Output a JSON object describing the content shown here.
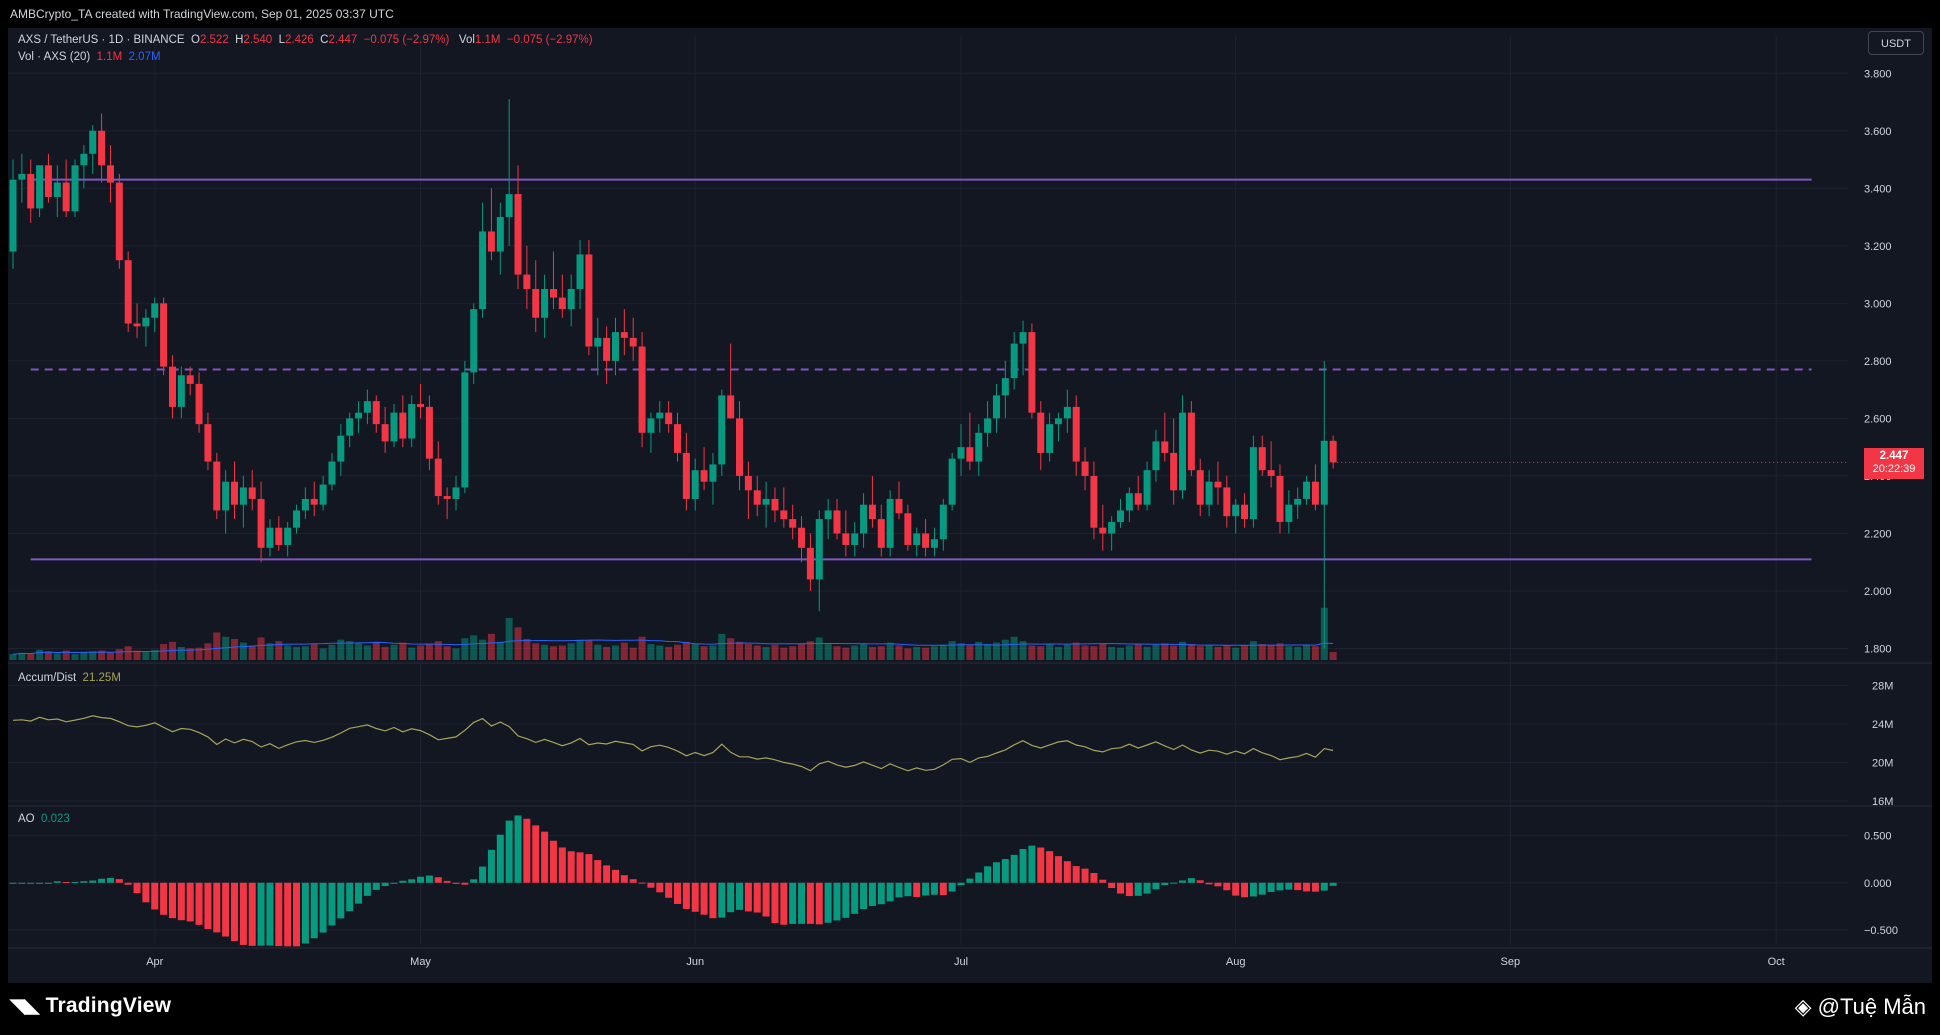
{
  "header": {
    "caption": "AMBCrypto_TA created with TradingView.com, Sep 01, 2025 03:37 UTC"
  },
  "legend": {
    "symbol": "AXS / TetherUS · 1D · BINANCE",
    "o_label": "O",
    "o": "2.522",
    "h_label": "H",
    "h": "2.540",
    "l_label": "L",
    "l": "2.426",
    "c_label": "C",
    "c": "2.447",
    "change": "−0.075 (−2.97%)",
    "vol_label": "Vol",
    "vol": "1.1M",
    "vol_change": "−0.075 (−2.97%)",
    "vol_ind": "Vol · AXS (20)",
    "vol_val": "1.1M",
    "vol_ma": "2.07M",
    "ad_name": "Accum/Dist",
    "ad_val": "21.25M",
    "ao_name": "AO",
    "ao_val": "0.023"
  },
  "currency": "USDT",
  "last_price": {
    "price": "2.447",
    "countdown": "20:22:39"
  },
  "branding": {
    "logo": "TradingView",
    "credit": "@Tuệ Mẫn"
  },
  "colors": {
    "bg": "#131722",
    "up": "#089981",
    "down": "#f23645",
    "level": "#7e57c2",
    "ad_line": "#a8a35a",
    "vol_ma": "#2962ff",
    "grid": "#1e2230",
    "axis_text": "#d1d4dc"
  },
  "chart_data": {
    "type": "candlestick",
    "x_axis": {
      "ticks": [
        "Apr",
        "May",
        "Jun",
        "Jul",
        "Aug",
        "Sep",
        "Oct"
      ],
      "tick_dates": [
        "2025-04-01",
        "2025-05-01",
        "2025-06-01",
        "2025-07-01",
        "2025-08-01",
        "2025-09-01",
        "2025-10-01"
      ]
    },
    "price_axis": {
      "ticks": [
        "3.800",
        "3.600",
        "3.400",
        "3.200",
        "3.000",
        "2.800",
        "2.600",
        "2.400",
        "2.200",
        "2.000",
        "1.800"
      ],
      "range": [
        1.76,
        3.86
      ]
    },
    "levels": [
      {
        "price": 3.43,
        "style": "solid",
        "from": "2025-03-18",
        "to": "2025-10-05"
      },
      {
        "price": 2.77,
        "style": "dashed",
        "from": "2025-03-18",
        "to": "2025-10-05"
      },
      {
        "price": 2.11,
        "style": "solid",
        "from": "2025-03-18",
        "to": "2025-10-05"
      }
    ],
    "candles_start": "2025-03-16",
    "candles": [
      [
        3.18,
        3.5,
        3.12,
        3.43
      ],
      [
        3.43,
        3.52,
        3.35,
        3.45
      ],
      [
        3.45,
        3.5,
        3.28,
        3.33
      ],
      [
        3.33,
        3.48,
        3.3,
        3.48
      ],
      [
        3.48,
        3.52,
        3.35,
        3.37
      ],
      [
        3.37,
        3.48,
        3.3,
        3.42
      ],
      [
        3.42,
        3.5,
        3.3,
        3.32
      ],
      [
        3.32,
        3.5,
        3.3,
        3.48
      ],
      [
        3.48,
        3.55,
        3.4,
        3.52
      ],
      [
        3.52,
        3.62,
        3.45,
        3.6
      ],
      [
        3.6,
        3.66,
        3.42,
        3.48
      ],
      [
        3.48,
        3.55,
        3.35,
        3.42
      ],
      [
        3.42,
        3.45,
        3.12,
        3.15
      ],
      [
        3.15,
        3.18,
        2.9,
        2.93
      ],
      [
        2.93,
        3.0,
        2.88,
        2.92
      ],
      [
        2.92,
        2.98,
        2.85,
        2.95
      ],
      [
        2.95,
        3.02,
        2.9,
        3.0
      ],
      [
        3.0,
        3.02,
        2.75,
        2.78
      ],
      [
        2.78,
        2.82,
        2.6,
        2.64
      ],
      [
        2.64,
        2.78,
        2.6,
        2.75
      ],
      [
        2.75,
        2.78,
        2.68,
        2.72
      ],
      [
        2.72,
        2.76,
        2.55,
        2.58
      ],
      [
        2.58,
        2.62,
        2.42,
        2.45
      ],
      [
        2.45,
        2.48,
        2.25,
        2.28
      ],
      [
        2.28,
        2.42,
        2.2,
        2.38
      ],
      [
        2.38,
        2.45,
        2.25,
        2.3
      ],
      [
        2.3,
        2.4,
        2.22,
        2.36
      ],
      [
        2.36,
        2.42,
        2.28,
        2.32
      ],
      [
        2.32,
        2.38,
        2.1,
        2.15
      ],
      [
        2.15,
        2.25,
        2.12,
        2.22
      ],
      [
        2.22,
        2.26,
        2.14,
        2.16
      ],
      [
        2.16,
        2.24,
        2.12,
        2.22
      ],
      [
        2.22,
        2.3,
        2.2,
        2.28
      ],
      [
        2.28,
        2.36,
        2.25,
        2.32
      ],
      [
        2.32,
        2.38,
        2.26,
        2.3
      ],
      [
        2.3,
        2.4,
        2.28,
        2.37
      ],
      [
        2.37,
        2.48,
        2.35,
        2.45
      ],
      [
        2.45,
        2.58,
        2.4,
        2.54
      ],
      [
        2.54,
        2.62,
        2.5,
        2.6
      ],
      [
        2.6,
        2.66,
        2.55,
        2.62
      ],
      [
        2.62,
        2.7,
        2.58,
        2.66
      ],
      [
        2.66,
        2.68,
        2.55,
        2.58
      ],
      [
        2.58,
        2.64,
        2.48,
        2.52
      ],
      [
        2.52,
        2.65,
        2.5,
        2.62
      ],
      [
        2.62,
        2.68,
        2.5,
        2.53
      ],
      [
        2.53,
        2.68,
        2.5,
        2.65
      ],
      [
        2.65,
        2.72,
        2.6,
        2.64
      ],
      [
        2.64,
        2.68,
        2.42,
        2.46
      ],
      [
        2.46,
        2.52,
        2.3,
        2.33
      ],
      [
        2.33,
        2.36,
        2.25,
        2.32
      ],
      [
        2.32,
        2.4,
        2.28,
        2.36
      ],
      [
        2.36,
        2.8,
        2.34,
        2.76
      ],
      [
        2.76,
        3.0,
        2.72,
        2.98
      ],
      [
        2.98,
        3.35,
        2.95,
        3.25
      ],
      [
        3.25,
        3.4,
        3.15,
        3.18
      ],
      [
        3.18,
        3.35,
        3.1,
        3.3
      ],
      [
        3.3,
        3.71,
        3.2,
        3.38
      ],
      [
        3.38,
        3.48,
        3.05,
        3.1
      ],
      [
        3.1,
        3.2,
        2.98,
        3.05
      ],
      [
        3.05,
        3.15,
        2.9,
        2.95
      ],
      [
        2.95,
        3.1,
        2.88,
        3.05
      ],
      [
        3.05,
        3.18,
        2.98,
        3.02
      ],
      [
        3.02,
        3.1,
        2.95,
        2.98
      ],
      [
        2.98,
        3.1,
        2.92,
        3.05
      ],
      [
        3.05,
        3.22,
        2.98,
        3.17
      ],
      [
        3.17,
        3.22,
        2.82,
        2.85
      ],
      [
        2.85,
        2.95,
        2.75,
        2.88
      ],
      [
        2.88,
        2.92,
        2.72,
        2.8
      ],
      [
        2.8,
        2.95,
        2.75,
        2.9
      ],
      [
        2.9,
        2.98,
        2.82,
        2.88
      ],
      [
        2.88,
        2.95,
        2.8,
        2.85
      ],
      [
        2.85,
        2.9,
        2.5,
        2.55
      ],
      [
        2.55,
        2.62,
        2.48,
        2.6
      ],
      [
        2.6,
        2.66,
        2.55,
        2.62
      ],
      [
        2.62,
        2.66,
        2.55,
        2.58
      ],
      [
        2.58,
        2.62,
        2.45,
        2.48
      ],
      [
        2.48,
        2.55,
        2.28,
        2.32
      ],
      [
        2.32,
        2.46,
        2.28,
        2.42
      ],
      [
        2.42,
        2.5,
        2.35,
        2.38
      ],
      [
        2.38,
        2.48,
        2.3,
        2.44
      ],
      [
        2.44,
        2.7,
        2.4,
        2.68
      ],
      [
        2.68,
        2.86,
        2.6,
        2.6
      ],
      [
        2.6,
        2.66,
        2.35,
        2.4
      ],
      [
        2.4,
        2.45,
        2.25,
        2.35
      ],
      [
        2.35,
        2.4,
        2.26,
        2.3
      ],
      [
        2.3,
        2.38,
        2.22,
        2.32
      ],
      [
        2.32,
        2.36,
        2.24,
        2.28
      ],
      [
        2.28,
        2.36,
        2.22,
        2.25
      ],
      [
        2.25,
        2.3,
        2.18,
        2.22
      ],
      [
        2.22,
        2.26,
        2.1,
        2.15
      ],
      [
        2.15,
        2.2,
        2.0,
        2.04
      ],
      [
        2.04,
        2.28,
        1.93,
        2.25
      ],
      [
        2.25,
        2.32,
        2.18,
        2.28
      ],
      [
        2.28,
        2.32,
        2.18,
        2.2
      ],
      [
        2.2,
        2.28,
        2.12,
        2.16
      ],
      [
        2.16,
        2.24,
        2.12,
        2.2
      ],
      [
        2.2,
        2.34,
        2.15,
        2.3
      ],
      [
        2.3,
        2.4,
        2.22,
        2.25
      ],
      [
        2.25,
        2.3,
        2.12,
        2.15
      ],
      [
        2.15,
        2.35,
        2.12,
        2.32
      ],
      [
        2.32,
        2.38,
        2.25,
        2.27
      ],
      [
        2.27,
        2.3,
        2.14,
        2.16
      ],
      [
        2.16,
        2.22,
        2.12,
        2.2
      ],
      [
        2.2,
        2.25,
        2.12,
        2.15
      ],
      [
        2.15,
        2.22,
        2.12,
        2.18
      ],
      [
        2.18,
        2.32,
        2.14,
        2.3
      ],
      [
        2.3,
        2.48,
        2.28,
        2.46
      ],
      [
        2.46,
        2.58,
        2.4,
        2.5
      ],
      [
        2.5,
        2.62,
        2.42,
        2.45
      ],
      [
        2.45,
        2.58,
        2.4,
        2.55
      ],
      [
        2.55,
        2.66,
        2.5,
        2.6
      ],
      [
        2.6,
        2.72,
        2.55,
        2.68
      ],
      [
        2.68,
        2.8,
        2.6,
        2.74
      ],
      [
        2.74,
        2.9,
        2.7,
        2.86
      ],
      [
        2.86,
        2.94,
        2.75,
        2.9
      ],
      [
        2.9,
        2.93,
        2.6,
        2.62
      ],
      [
        2.62,
        2.66,
        2.42,
        2.48
      ],
      [
        2.48,
        2.62,
        2.45,
        2.58
      ],
      [
        2.58,
        2.62,
        2.52,
        2.6
      ],
      [
        2.6,
        2.7,
        2.55,
        2.64
      ],
      [
        2.64,
        2.68,
        2.4,
        2.45
      ],
      [
        2.45,
        2.5,
        2.35,
        2.4
      ],
      [
        2.4,
        2.45,
        2.18,
        2.22
      ],
      [
        2.22,
        2.3,
        2.14,
        2.2
      ],
      [
        2.2,
        2.26,
        2.14,
        2.24
      ],
      [
        2.24,
        2.32,
        2.22,
        2.28
      ],
      [
        2.28,
        2.36,
        2.24,
        2.34
      ],
      [
        2.34,
        2.4,
        2.28,
        2.3
      ],
      [
        2.3,
        2.45,
        2.28,
        2.42
      ],
      [
        2.42,
        2.56,
        2.38,
        2.52
      ],
      [
        2.52,
        2.62,
        2.45,
        2.48
      ],
      [
        2.48,
        2.6,
        2.3,
        2.35
      ],
      [
        2.35,
        2.68,
        2.32,
        2.62
      ],
      [
        2.62,
        2.66,
        2.4,
        2.42
      ],
      [
        2.42,
        2.46,
        2.26,
        2.3
      ],
      [
        2.3,
        2.42,
        2.26,
        2.38
      ],
      [
        2.38,
        2.45,
        2.3,
        2.36
      ],
      [
        2.36,
        2.4,
        2.22,
        2.26
      ],
      [
        2.26,
        2.32,
        2.2,
        2.3
      ],
      [
        2.3,
        2.34,
        2.22,
        2.25
      ],
      [
        2.25,
        2.54,
        2.22,
        2.5
      ],
      [
        2.5,
        2.54,
        2.4,
        2.42
      ],
      [
        2.42,
        2.52,
        2.36,
        2.4
      ],
      [
        2.4,
        2.44,
        2.2,
        2.24
      ],
      [
        2.24,
        2.35,
        2.2,
        2.3
      ],
      [
        2.3,
        2.36,
        2.25,
        2.32
      ],
      [
        2.32,
        2.4,
        2.3,
        2.38
      ],
      [
        2.38,
        2.44,
        2.28,
        2.3
      ],
      [
        2.3,
        2.8,
        1.8,
        2.522
      ],
      [
        2.522,
        2.54,
        2.426,
        2.447
      ]
    ],
    "volume": {
      "ma_period": 20,
      "values": [
        0.8,
        1.0,
        0.9,
        1.4,
        1.2,
        0.9,
        1.3,
        0.8,
        1.1,
        1.2,
        1.3,
        1.0,
        1.5,
        1.9,
        1.3,
        1.1,
        1.4,
        2.2,
        2.5,
        1.8,
        1.6,
        1.7,
        2.3,
        3.8,
        3.2,
        2.9,
        2.4,
        2.0,
        3.1,
        2.3,
        2.6,
        2.0,
        1.8,
        1.9,
        2.2,
        1.6,
        2.1,
        2.8,
        2.6,
        2.3,
        2.0,
        2.5,
        1.8,
        2.1,
        2.4,
        1.7,
        2.0,
        2.2,
        2.6,
        1.9,
        1.6,
        3.0,
        3.4,
        2.8,
        3.6,
        2.5,
        5.8,
        4.5,
        2.9,
        2.3,
        2.1,
        1.9,
        2.0,
        2.3,
        2.8,
        2.7,
        2.1,
        1.8,
        2.0,
        2.4,
        1.7,
        3.2,
        2.2,
        2.0,
        1.8,
        2.1,
        2.5,
        2.2,
        1.9,
        2.0,
        3.6,
        3.0,
        2.5,
        2.2,
        2.0,
        1.8,
        2.1,
        1.7,
        1.9,
        2.3,
        2.6,
        3.1,
        2.2,
        1.9,
        1.7,
        2.0,
        2.2,
        1.8,
        1.9,
        2.4,
        2.0,
        1.6,
        1.8,
        1.7,
        1.9,
        2.1,
        2.6,
        2.3,
        2.0,
        2.5,
        2.2,
        2.4,
        2.8,
        3.2,
        2.6,
        2.0,
        1.9,
        2.2,
        1.8,
        2.1,
        2.4,
        2.0,
        1.9,
        2.3,
        1.8,
        1.7,
        2.0,
        2.2,
        1.8,
        2.1,
        2.3,
        2.0,
        2.5,
        2.2,
        1.9,
        2.1,
        1.8,
        2.0,
        1.7,
        2.0,
        2.6,
        2.2,
        2.0,
        2.3,
        1.9,
        1.8,
        2.0,
        1.9,
        7.2,
        1.1
      ]
    },
    "accum_dist": {
      "axis_ticks": [
        "28M",
        "24M",
        "20M",
        "16M"
      ],
      "range": [
        15.8,
        29.6
      ],
      "last": 21.25
    },
    "awesome_oscillator": {
      "axis_ticks": [
        "0.500",
        "0.000",
        "−0.500"
      ],
      "range": [
        -0.66,
        0.74
      ],
      "last": 0.023
    }
  }
}
